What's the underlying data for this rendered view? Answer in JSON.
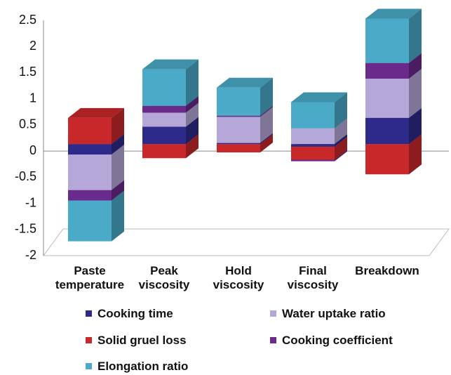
{
  "chart_data": {
    "type": "bar3d_stacked",
    "categories": [
      "Paste temperature",
      "Peak viscosity",
      "Hold viscosity",
      "Final viscosity",
      "Breakdown"
    ],
    "series": [
      {
        "name": "Cooking time",
        "color": "#2e2a8a",
        "values": [
          -0.2,
          0.33,
          0.02,
          -0.05,
          0.5
        ]
      },
      {
        "name": "Water uptake ratio",
        "color": "#b5a8d8",
        "values": [
          -0.68,
          0.27,
          0.5,
          0.3,
          0.75
        ]
      },
      {
        "name": "Solid gruel loss",
        "color": "#c8282a",
        "values": [
          0.5,
          -0.27,
          -0.16,
          -0.25,
          -0.58
        ]
      },
      {
        "name": "Cooking coefficient",
        "color": "#6a2a8c",
        "values": [
          -0.2,
          0.13,
          0.02,
          -0.03,
          0.3
        ]
      },
      {
        "name": "Elongation ratio",
        "color": "#4aaac8",
        "values": [
          -0.78,
          0.7,
          0.54,
          0.5,
          0.85
        ]
      }
    ],
    "ylim": [
      -2,
      2.5
    ],
    "yticks": [
      -2,
      -1.5,
      -1,
      -0.5,
      0,
      0.5,
      1,
      1.5,
      2,
      2.5
    ]
  }
}
